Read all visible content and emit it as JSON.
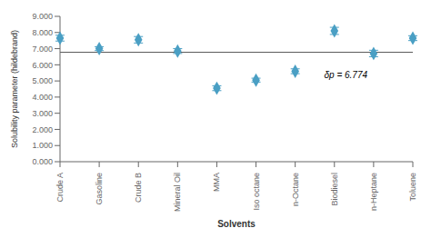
{
  "chart_data": {
    "type": "scatter",
    "categories": [
      "Crude A",
      "Gasoline",
      "Crude B",
      "Mineral Oil",
      "MMA",
      "Iso octane",
      "n-Octane",
      "Biodiesel",
      "n-Heptane",
      "Toluene"
    ],
    "values": [
      7.65,
      7.0,
      7.55,
      6.85,
      4.55,
      5.05,
      5.6,
      8.1,
      6.7,
      7.65
    ],
    "errors": [
      0.18,
      0.12,
      0.2,
      0.15,
      0.15,
      0.12,
      0.15,
      0.22,
      0.2,
      0.15
    ],
    "color": "#4a9fc4",
    "marker": "diamond",
    "reference_line": {
      "value": 6.774,
      "color": "#555555"
    },
    "annotation": "δp = 6.774",
    "xlabel": "Solvents",
    "ylabel": "Solubility parameter (hildebrand)",
    "ylim": [
      0.0,
      9.0
    ],
    "yticks": [
      {
        "value": 0,
        "label": "0.000"
      },
      {
        "value": 1,
        "label": "1.000"
      },
      {
        "value": 2,
        "label": "2.000"
      },
      {
        "value": 3,
        "label": "3.000"
      },
      {
        "value": 4,
        "label": "4.000"
      },
      {
        "value": 5,
        "label": "5.000"
      },
      {
        "value": 6,
        "label": "6.000"
      },
      {
        "value": 7,
        "label": "7.000"
      },
      {
        "value": 8,
        "label": "8.000"
      },
      {
        "value": 9,
        "label": "9.000"
      }
    ],
    "grid": false
  }
}
